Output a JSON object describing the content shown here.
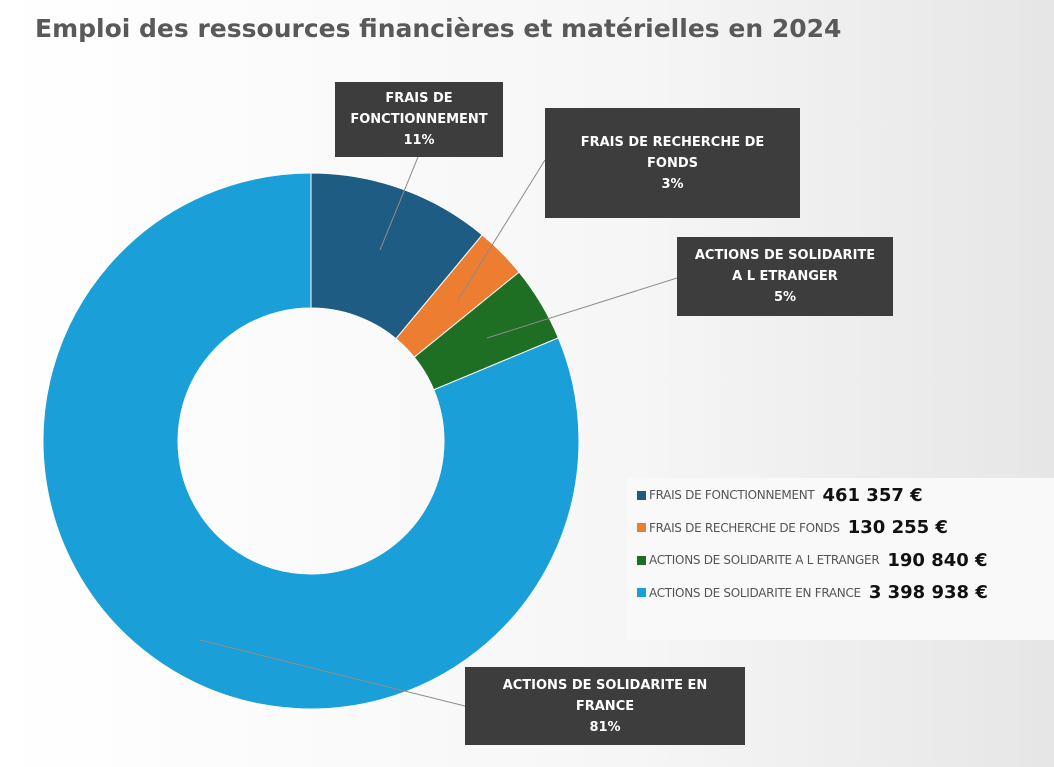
{
  "chart_data": {
    "type": "donut",
    "title": "Emploi des ressources financières et matérielles en 2024",
    "categories": [
      "FRAIS DE FONCTIONNEMENT",
      "FRAIS DE RECHERCHE DE FONDS",
      "ACTIONS DE SOLIDARITE A L ETRANGER",
      "ACTIONS DE SOLIDARITE EN FRANCE"
    ],
    "values": [
      461357,
      130255,
      190840,
      3398938
    ],
    "value_labels": [
      "461 357 €",
      "130 255 €",
      "190 840 €",
      "3 398 938 €"
    ],
    "percent_labels": [
      "11%",
      "3%",
      "5%",
      "81%"
    ],
    "colors": [
      "#1f5c83",
      "#ed7d31",
      "#1e6e24",
      "#1a9fd8"
    ]
  }
}
